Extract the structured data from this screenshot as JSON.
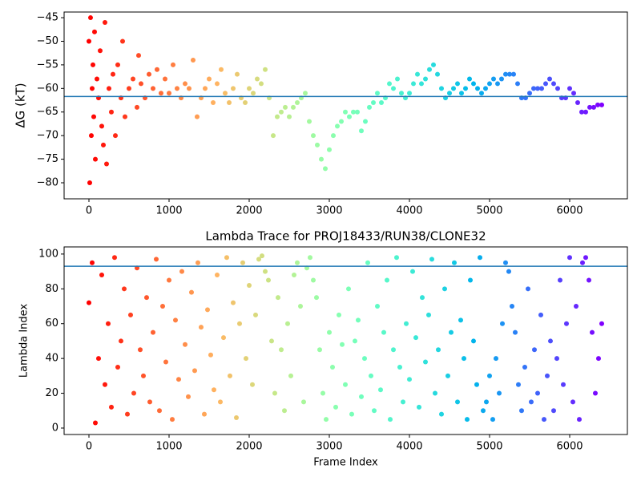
{
  "chart_data": [
    {
      "type": "scatter",
      "ylabel": "ΔG (kT)",
      "xlim": [
        -310,
        6720
      ],
      "ylim": [
        -83.4,
        -43.8
      ],
      "xticks": [
        0,
        1000,
        2000,
        3000,
        4000,
        5000,
        6000
      ],
      "yticks": [
        {
          "value": -80,
          "label": "−80"
        },
        {
          "value": -75,
          "label": "−75"
        },
        {
          "value": -70,
          "label": "−70"
        },
        {
          "value": -65,
          "label": "−65"
        },
        {
          "value": -60,
          "label": "−60"
        },
        {
          "value": -55,
          "label": "−55"
        },
        {
          "value": -50,
          "label": "−50"
        },
        {
          "value": -45,
          "label": "−45"
        }
      ],
      "colormap": "rainbow_r",
      "color_by": "x",
      "hline": -61.7,
      "hline_color": "#1f77b4",
      "x": [
        0,
        10,
        20,
        30,
        40,
        50,
        60,
        70,
        80,
        100,
        120,
        140,
        160,
        180,
        200,
        220,
        250,
        280,
        300,
        330,
        360,
        400,
        420,
        450,
        500,
        550,
        600,
        620,
        650,
        700,
        750,
        800,
        850,
        900,
        950,
        1000,
        1050,
        1100,
        1150,
        1200,
        1250,
        1300,
        1350,
        1400,
        1450,
        1500,
        1550,
        1600,
        1650,
        1700,
        1750,
        1800,
        1850,
        1900,
        1950,
        2000,
        2050,
        2100,
        2150,
        2200,
        2250,
        2300,
        2350,
        2400,
        2450,
        2500,
        2550,
        2600,
        2650,
        2700,
        2750,
        2800,
        2850,
        2900,
        2950,
        3000,
        3050,
        3100,
        3150,
        3200,
        3250,
        3300,
        3350,
        3400,
        3450,
        3500,
        3550,
        3600,
        3650,
        3700,
        3750,
        3800,
        3850,
        3900,
        3950,
        4000,
        4050,
        4100,
        4150,
        4200,
        4250,
        4300,
        4350,
        4400,
        4450,
        4500,
        4550,
        4600,
        4650,
        4700,
        4750,
        4800,
        4850,
        4900,
        4950,
        5000,
        5050,
        5100,
        5150,
        5200,
        5250,
        5300,
        5350,
        5400,
        5450,
        5500,
        5550,
        5600,
        5650,
        5700,
        5750,
        5800,
        5850,
        5900,
        5950,
        6000,
        6050,
        6100,
        6150,
        6200,
        6250,
        6300,
        6350,
        6400
      ],
      "values": [
        -50,
        -80,
        -45,
        -70,
        -60,
        -55,
        -66,
        -48,
        -75,
        -58,
        -62,
        -52,
        -68,
        -72,
        -46,
        -76,
        -60,
        -65,
        -57,
        -70,
        -55,
        -62,
        -50,
        -66,
        -60,
        -58,
        -64,
        -53,
        -59,
        -62,
        -57,
        -60,
        -56,
        -61,
        -58,
        -61,
        -55,
        -60,
        -62,
        -59,
        -60,
        -54,
        -66,
        -62,
        -60,
        -58,
        -63,
        -59,
        -56,
        -61,
        -63,
        -60,
        -57,
        -62,
        -63,
        -60,
        -61,
        -58,
        -59,
        -56,
        -62,
        -70,
        -66,
        -65,
        -64,
        -66,
        -64,
        -63,
        -62,
        -61,
        -67,
        -70,
        -72,
        -75,
        -77,
        -73,
        -70,
        -68,
        -67,
        -65,
        -66,
        -65,
        -65,
        -69,
        -67,
        -64,
        -63,
        -61,
        -63,
        -62,
        -59,
        -60,
        -58,
        -61,
        -62,
        -61,
        -59,
        -57,
        -59,
        -58,
        -56,
        -55,
        -57,
        -60,
        -62,
        -61,
        -60,
        -59,
        -61,
        -60,
        -58,
        -59,
        -60,
        -61,
        -60,
        -59,
        -58,
        -59,
        -58,
        -57,
        -57,
        -57,
        -59,
        -62,
        -62,
        -61,
        -60,
        -60,
        -60,
        -59,
        -58,
        -59,
        -60,
        -62,
        -62,
        -60,
        -61,
        -63,
        -65,
        -65,
        -64,
        -64,
        -63.5,
        -63.5
      ]
    },
    {
      "type": "scatter",
      "title": "Lambda Trace for PROJ18433/RUN38/CLONE32",
      "xlabel": "Frame Index",
      "ylabel": "Lambda Index",
      "xlim": [
        -310,
        6720
      ],
      "ylim": [
        -3.7,
        104.1
      ],
      "xticks": [
        0,
        1000,
        2000,
        3000,
        4000,
        5000,
        6000
      ],
      "yticks": [
        0,
        20,
        40,
        60,
        80,
        100
      ],
      "colormap": "rainbow_r",
      "color_by": "x",
      "hline": 93,
      "hline_color": "#1f77b4",
      "x": [
        0,
        40,
        80,
        120,
        160,
        200,
        240,
        280,
        320,
        360,
        400,
        440,
        480,
        520,
        560,
        600,
        640,
        680,
        720,
        760,
        800,
        840,
        880,
        920,
        960,
        1000,
        1040,
        1080,
        1120,
        1160,
        1200,
        1240,
        1280,
        1320,
        1360,
        1400,
        1440,
        1480,
        1520,
        1560,
        1600,
        1640,
        1680,
        1720,
        1760,
        1800,
        1840,
        1880,
        1920,
        1960,
        2000,
        2040,
        2080,
        2120,
        2160,
        2200,
        2240,
        2280,
        2320,
        2360,
        2400,
        2440,
        2480,
        2520,
        2560,
        2600,
        2640,
        2680,
        2720,
        2760,
        2800,
        2840,
        2880,
        2920,
        2960,
        3000,
        3040,
        3080,
        3120,
        3160,
        3200,
        3240,
        3280,
        3320,
        3360,
        3400,
        3440,
        3480,
        3520,
        3560,
        3600,
        3640,
        3680,
        3720,
        3760,
        3800,
        3840,
        3880,
        3920,
        3960,
        4000,
        4040,
        4080,
        4120,
        4160,
        4200,
        4240,
        4280,
        4320,
        4360,
        4400,
        4440,
        4480,
        4520,
        4560,
        4600,
        4640,
        4680,
        4720,
        4760,
        4800,
        4840,
        4880,
        4920,
        4960,
        5000,
        5040,
        5080,
        5120,
        5160,
        5200,
        5240,
        5280,
        5320,
        5360,
        5400,
        5440,
        5480,
        5520,
        5560,
        5600,
        5640,
        5680,
        5720,
        5760,
        5800,
        5840,
        5880,
        5920,
        5960,
        6000,
        6040,
        6080,
        6120,
        6160,
        6200,
        6240,
        6280,
        6320,
        6360,
        6400
      ],
      "values": [
        72,
        95,
        3,
        40,
        88,
        25,
        60,
        12,
        98,
        35,
        50,
        80,
        8,
        65,
        20,
        92,
        45,
        30,
        75,
        15,
        55,
        97,
        10,
        70,
        38,
        85,
        5,
        62,
        28,
        90,
        48,
        18,
        78,
        33,
        95,
        58,
        8,
        68,
        42,
        22,
        88,
        15,
        52,
        98,
        30,
        72,
        6,
        60,
        95,
        40,
        82,
        25,
        65,
        97,
        99,
        90,
        85,
        50,
        20,
        75,
        45,
        10,
        60,
        30,
        88,
        95,
        70,
        15,
        92,
        98,
        85,
        75,
        45,
        20,
        5,
        55,
        35,
        12,
        65,
        48,
        25,
        80,
        8,
        50,
        62,
        18,
        40,
        95,
        30,
        10,
        70,
        22,
        55,
        85,
        5,
        45,
        98,
        35,
        15,
        60,
        28,
        90,
        52,
        12,
        75,
        38,
        65,
        97,
        20,
        45,
        8,
        80,
        30,
        55,
        95,
        15,
        62,
        40,
        5,
        85,
        50,
        25,
        98,
        10,
        15,
        30,
        5,
        40,
        20,
        60,
        95,
        90,
        70,
        55,
        25,
        10,
        35,
        80,
        15,
        45,
        20,
        65,
        5,
        30,
        50,
        10,
        40,
        85,
        25,
        60,
        98,
        15,
        70,
        5,
        95,
        98,
        85,
        55,
        20,
        40,
        60
      ]
    }
  ]
}
